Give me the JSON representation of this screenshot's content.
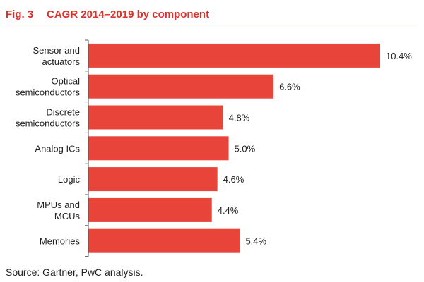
{
  "figure": {
    "label": "Fig. 3",
    "title": "CAGR 2014–2019 by component",
    "source": "Source: Gartner, PwC analysis."
  },
  "colors": {
    "accent": "#d9322a",
    "bar": "#e8443a",
    "text": "#222222",
    "axis": "#555555"
  },
  "chart_data": {
    "type": "bar",
    "orientation": "horizontal",
    "title": "CAGR 2014–2019 by component",
    "xlabel": "",
    "ylabel": "",
    "xlim": [
      0,
      10.4
    ],
    "unit": "%",
    "categories": [
      [
        "Sensor and",
        "actuators"
      ],
      [
        "Optical",
        "semiconductors"
      ],
      [
        "Discrete",
        "semiconductors"
      ],
      [
        "Analog ICs"
      ],
      [
        "Logic"
      ],
      [
        "MPUs and",
        "MCUs"
      ],
      [
        "Memories"
      ]
    ],
    "values": [
      10.4,
      6.6,
      4.8,
      5.0,
      4.6,
      4.4,
      5.4
    ],
    "labels": [
      "10.4%",
      "6.6%",
      "4.8%",
      "5.0%",
      "4.6%",
      "4.4%",
      "5.4%"
    ]
  }
}
